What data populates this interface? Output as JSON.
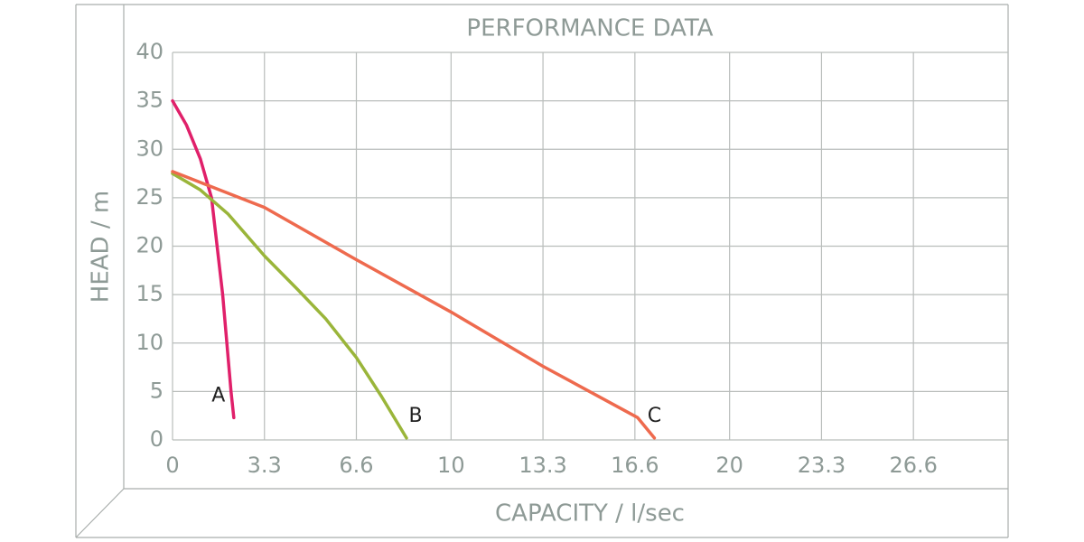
{
  "chart_data": {
    "type": "line",
    "title": "PERFORMANCE DATA",
    "x_label": "CAPACITY / l/sec",
    "y_label": "HEAD / m",
    "xlim": [
      0,
      30
    ],
    "ylim": [
      0,
      40
    ],
    "xticks": [
      0,
      3.3,
      6.6,
      10,
      13.3,
      16.6,
      20,
      23.3,
      26.6
    ],
    "yticks": [
      0,
      5,
      10,
      15,
      20,
      25,
      30,
      35,
      40
    ],
    "grid": true,
    "series": [
      {
        "name": "A",
        "color": "#e0206a",
        "x": [
          0,
          0.5,
          1,
          1.4,
          1.6,
          1.8,
          1.95,
          2.1,
          2.2
        ],
        "values": [
          35,
          32.5,
          29,
          25,
          20,
          15,
          10,
          5,
          2.3
        ]
      },
      {
        "name": "B",
        "color": "#9ab53a",
        "x": [
          0,
          1,
          2,
          3.3,
          4.5,
          5.5,
          6.6,
          7.5,
          8.4
        ],
        "values": [
          27.5,
          25.8,
          23.3,
          19,
          15.5,
          12.5,
          8.5,
          4.5,
          0.2
        ]
      },
      {
        "name": "C",
        "color": "#ee6a4e",
        "x": [
          0,
          3.3,
          6.6,
          10,
          13.3,
          16.7,
          17.3
        ],
        "values": [
          27.7,
          24,
          18.6,
          13.2,
          7.6,
          2.3,
          0.2
        ]
      }
    ]
  }
}
